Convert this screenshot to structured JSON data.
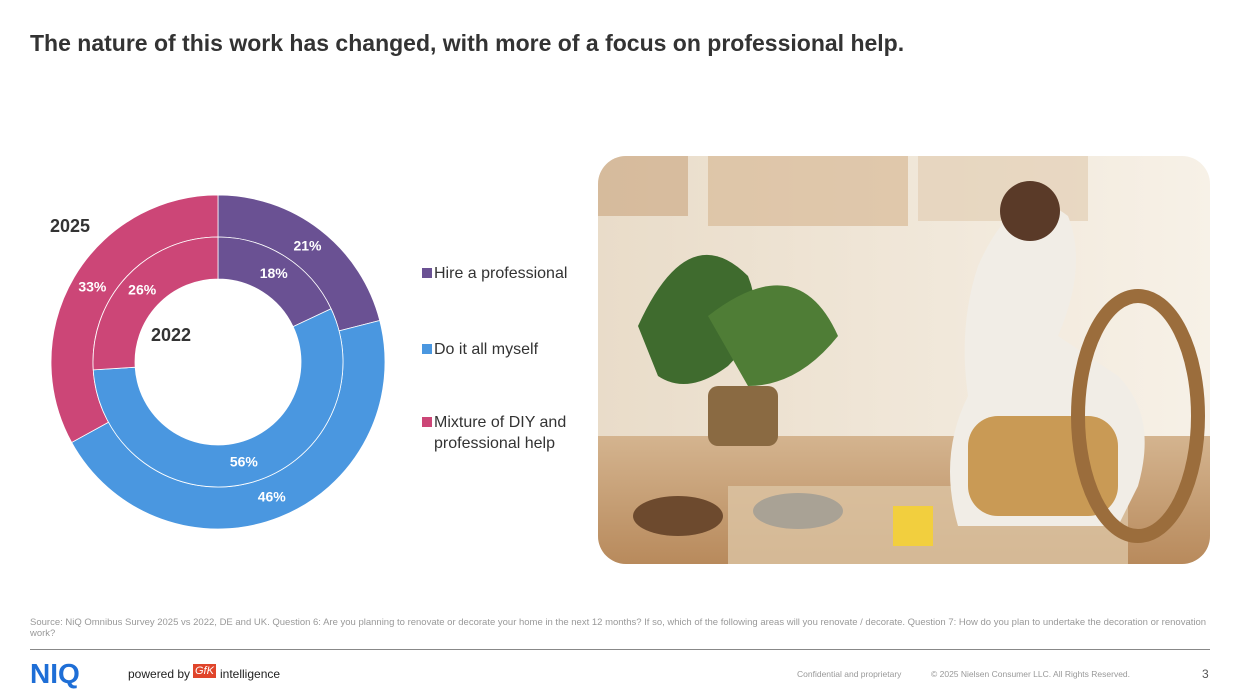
{
  "title": "The nature of this work has changed, with more of a focus on professional help.",
  "chart_data": {
    "type": "donut",
    "categories": [
      "Hire a professional",
      "Do it all myself",
      "Mixture of DIY and professional help"
    ],
    "colors": [
      "#6a5193",
      "#4a97e0",
      "#cc4677"
    ],
    "series": [
      {
        "name": "2025",
        "values": [
          21,
          46,
          33
        ],
        "value_labels": [
          "21%",
          "46%",
          "33%"
        ]
      },
      {
        "name": "2022",
        "values": [
          18,
          56,
          26
        ],
        "value_labels": [
          "18%",
          "56%",
          "26%"
        ]
      }
    ]
  },
  "source": "Source: NiQ Omnibus Survey 2025 vs 2022, DE and UK. Question 6: Are you planning to renovate or decorate your home in the next 12 months? If so, which of the following areas will you renovate / decorate. Question 7: How do you plan to undertake the decoration or renovation work?",
  "footer": {
    "logo": "NIQ",
    "powered_by": "powered by",
    "partner": "GfK",
    "partner_suffix": "intelligence",
    "confidential": "Confidential and proprietary",
    "copyright": "© 2025 Nielsen Consumer LLC. All Rights Reserved.",
    "page": "3"
  }
}
